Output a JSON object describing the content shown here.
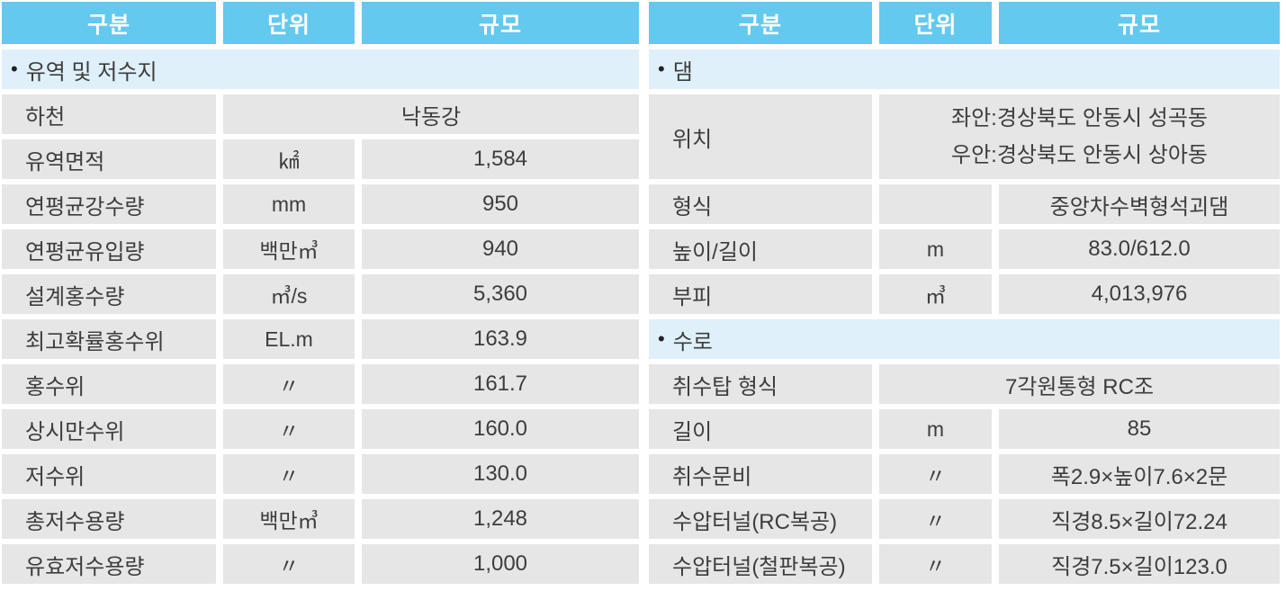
{
  "colors": {
    "header_bg": "#63c9ef",
    "header_text": "#ffffff",
    "section_bg": "#dff0fa",
    "cell_bg": "#e6e6e6",
    "text": "#3d3d3d"
  },
  "left_table": {
    "headers": [
      "구분",
      "단위",
      "규모"
    ],
    "section": {
      "bullet": "•",
      "title": "유역 및 저수지"
    },
    "rows": [
      {
        "label": "하천",
        "value": "낙동강"
      },
      {
        "label": "유역면적",
        "unit": "㎢",
        "value": "1,584"
      },
      {
        "label": "연평균강수량",
        "unit": "mm",
        "value": "950"
      },
      {
        "label": "연평균유입량",
        "unit": "백만㎥",
        "value": "940"
      },
      {
        "label": "설계홍수량",
        "unit": "㎥/s",
        "value": "5,360"
      },
      {
        "label": "최고확률홍수위",
        "unit": "EL.m",
        "value": "163.9"
      },
      {
        "label": "홍수위",
        "unit": "〃",
        "value": "161.7"
      },
      {
        "label": "상시만수위",
        "unit": "〃",
        "value": "160.0"
      },
      {
        "label": "저수위",
        "unit": "〃",
        "value": "130.0"
      },
      {
        "label": "총저수용량",
        "unit": "백만㎥",
        "value": "1,248"
      },
      {
        "label": "유효저수용량",
        "unit": "〃",
        "value": "1,000"
      }
    ]
  },
  "right_table": {
    "headers": [
      "구분",
      "단위",
      "규모"
    ],
    "sections": [
      {
        "bullet": "•",
        "title": "댐"
      },
      {
        "bullet": "•",
        "title": "수로"
      }
    ],
    "dam_rows": [
      {
        "label": "위치",
        "value_line1": "좌안:경상북도 안동시 성곡동",
        "value_line2": "우안:경상북도 안동시 상아동"
      },
      {
        "label": "형식",
        "unit": "",
        "value": "중앙차수벽형석괴댐"
      },
      {
        "label": "높이/길이",
        "unit": "m",
        "value": "83.0/612.0"
      },
      {
        "label": "부피",
        "unit": "㎥",
        "value": "4,013,976"
      }
    ],
    "waterway_rows": [
      {
        "label": "취수탑 형식",
        "value": "7각원통형 RC조"
      },
      {
        "label": "길이",
        "unit": "m",
        "value": "85"
      },
      {
        "label": "취수문비",
        "unit": "〃",
        "value": "폭2.9×높이7.6×2문"
      },
      {
        "label": "수압터널(RC복공)",
        "unit": "〃",
        "value": "직경8.5×길이72.24"
      },
      {
        "label": "수압터널(철판복공)",
        "unit": "〃",
        "value": "직경7.5×길이123.0"
      }
    ]
  }
}
